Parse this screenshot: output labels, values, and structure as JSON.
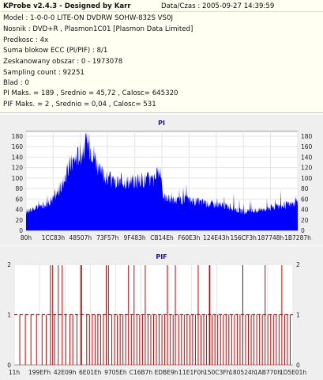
{
  "header": {
    "title": "KProbe v2.4.3 - Designed by Karr",
    "date": "Data/Czas : 2005-09-27 14:39:59"
  },
  "info": {
    "model": "Model : 1-0-0-0 LITE-ON DVDRW SOHW-832S  VS0J",
    "nosnik": "Nosnik : DVD+R , Plasmon1C01 [Plasmon Data Limited]",
    "predkosc": "Predkosc : 4x",
    "suma": "Suma blokow ECC (PI/PIF) : 8/1",
    "obszar": "Zeskanowany obszar : 0 - 1973078",
    "sampling": "Sampling count : 92251",
    "blad": "Blad : 0",
    "pi": "PI Maks. = 189 , Srednio = 45,72 , Calosc= 645320",
    "pif": "PIF Maks. = 2 , Srednio = 0,04 , Calosc= 531"
  },
  "colors": {
    "info_bg": "#fffff2",
    "panel_bg": "#efefef",
    "pi_fill": "#0000ff",
    "pif_bar": "#cc0000",
    "title": "#1a1a8a"
  },
  "chart_data": [
    {
      "type": "area",
      "title": "PI",
      "ylim": [
        0,
        189
      ],
      "yticks": [
        "0",
        "20",
        "40",
        "60",
        "80",
        "100",
        "120",
        "140",
        "160",
        "180"
      ],
      "xticks": [
        "80h",
        "1CC83h",
        "48507h",
        "73F57h",
        "9F483h",
        "CB14Eh",
        "F60E3h",
        "124E43h",
        "156CF3h",
        "187748h",
        "1B7287h"
      ],
      "grid": true,
      "profile": [
        [
          0,
          35
        ],
        [
          0.03,
          42
        ],
        [
          0.06,
          48
        ],
        [
          0.1,
          62
        ],
        [
          0.13,
          85
        ],
        [
          0.16,
          125
        ],
        [
          0.18,
          140
        ],
        [
          0.2,
          150
        ],
        [
          0.22,
          165
        ],
        [
          0.23,
          168
        ],
        [
          0.25,
          150
        ],
        [
          0.27,
          115
        ],
        [
          0.3,
          100
        ],
        [
          0.33,
          92
        ],
        [
          0.36,
          96
        ],
        [
          0.39,
          95
        ],
        [
          0.42,
          98
        ],
        [
          0.45,
          100
        ],
        [
          0.47,
          98
        ],
        [
          0.49,
          112
        ],
        [
          0.5,
          100
        ],
        [
          0.505,
          65
        ],
        [
          0.53,
          60
        ],
        [
          0.56,
          58
        ],
        [
          0.59,
          60
        ],
        [
          0.62,
          56
        ],
        [
          0.65,
          55
        ],
        [
          0.68,
          52
        ],
        [
          0.71,
          50
        ],
        [
          0.74,
          48
        ],
        [
          0.77,
          42
        ],
        [
          0.8,
          35
        ],
        [
          0.83,
          38
        ],
        [
          0.86,
          40
        ],
        [
          0.89,
          44
        ],
        [
          0.92,
          46
        ],
        [
          0.95,
          48
        ],
        [
          0.98,
          52
        ],
        [
          1,
          55
        ]
      ]
    },
    {
      "type": "bar",
      "title": "PIF",
      "ylim": [
        0,
        2
      ],
      "yticks": [
        "0",
        "1",
        "2"
      ],
      "xticks": [
        "11h",
        "199EFh",
        "42E09h",
        "6E01Eh",
        "9705Eh",
        "C16B7h",
        "EDBE9h",
        "11E1F0h",
        "150C3Fh",
        "180524h",
        "1AB770h",
        "1D5E01h"
      ],
      "grid": true,
      "spikes_level2": [
        0.13,
        0.138,
        0.158,
        0.172,
        0.238,
        0.242,
        0.33,
        0.338,
        0.41,
        0.43,
        0.47,
        0.55,
        0.578,
        0.66,
        0.7,
        0.702,
        0.82,
        0.9,
        0.96
      ],
      "spikes_level1": [
        0.02,
        0.04,
        0.06,
        0.08,
        0.1,
        0.115,
        0.145,
        0.185,
        0.2,
        0.21,
        0.225,
        0.26,
        0.27,
        0.28,
        0.29,
        0.3,
        0.31,
        0.32,
        0.35,
        0.36,
        0.37,
        0.38,
        0.39,
        0.4,
        0.42,
        0.44,
        0.45,
        0.46,
        0.48,
        0.49,
        0.5,
        0.51,
        0.52,
        0.53,
        0.54,
        0.56,
        0.57,
        0.59,
        0.6,
        0.61,
        0.62,
        0.63,
        0.64,
        0.65,
        0.67,
        0.68,
        0.69,
        0.71,
        0.72,
        0.73,
        0.74,
        0.75,
        0.76,
        0.77,
        0.78,
        0.79,
        0.8,
        0.81,
        0.83,
        0.84,
        0.85,
        0.86,
        0.87,
        0.88,
        0.89,
        0.91,
        0.92,
        0.93,
        0.94,
        0.95,
        0.97,
        0.98,
        0.99
      ]
    }
  ]
}
